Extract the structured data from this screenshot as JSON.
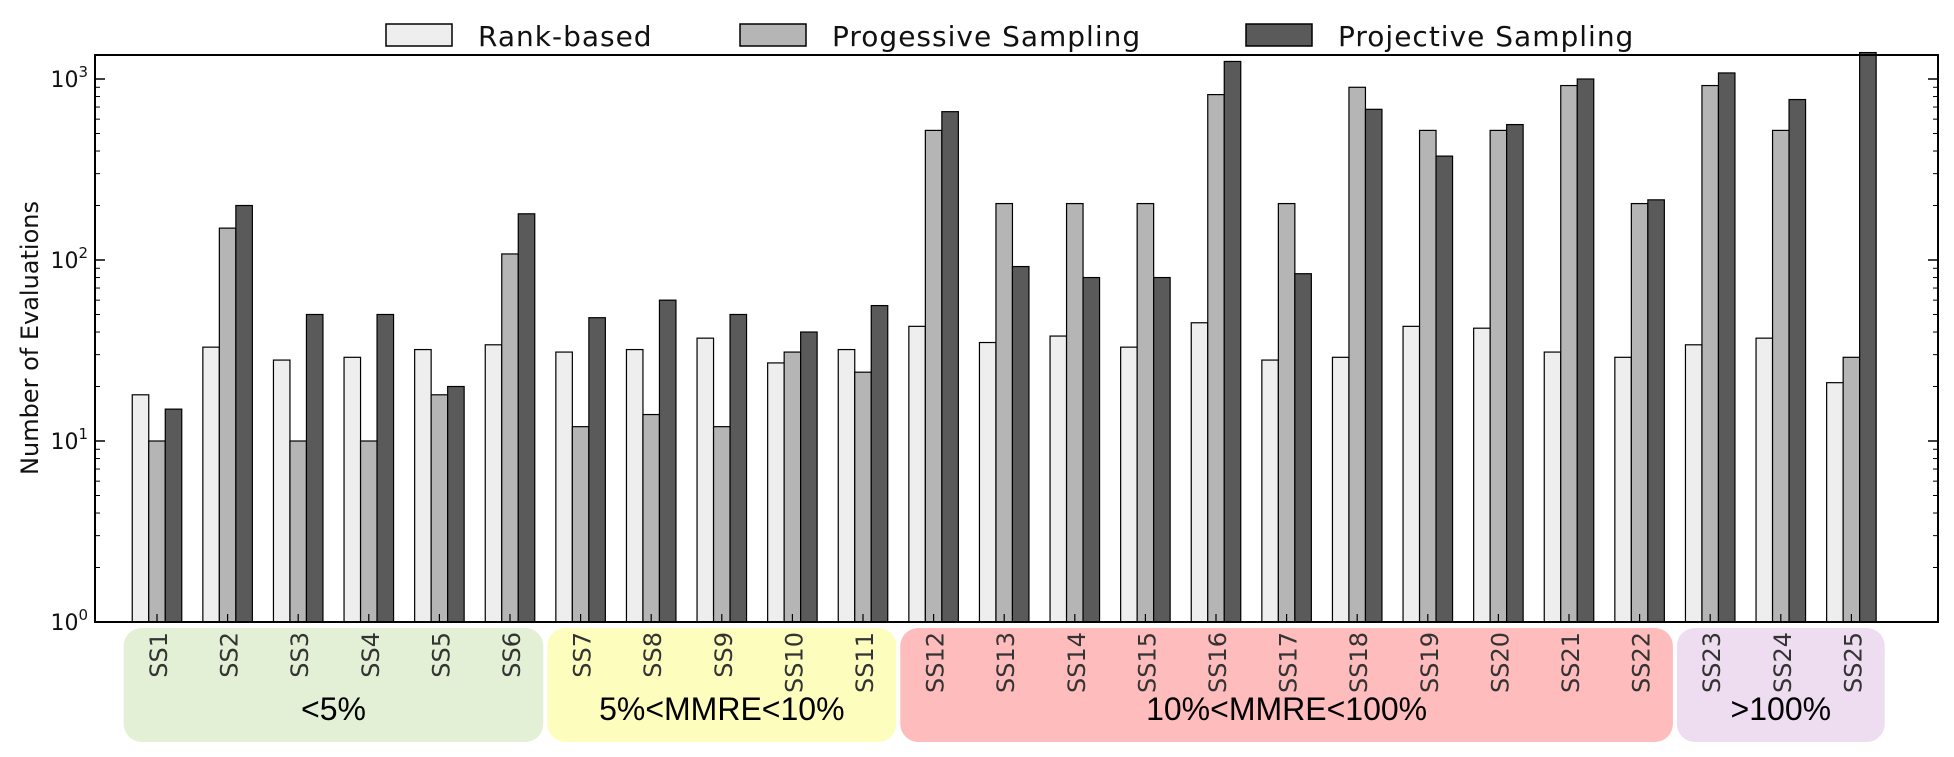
{
  "chart_data": {
    "type": "bar",
    "ylabel": "Number of Evaluations",
    "xlabel": "",
    "yscale": "log",
    "ylim": [
      1,
      1400
    ],
    "yticks": [
      {
        "base": "10",
        "exp": "0"
      },
      {
        "base": "10",
        "exp": "1"
      },
      {
        "base": "10",
        "exp": "2"
      },
      {
        "base": "10",
        "exp": "3"
      }
    ],
    "legend_position": "top",
    "categories": [
      "SS1",
      "SS2",
      "SS3",
      "SS4",
      "SS5",
      "SS6",
      "SS7",
      "SS8",
      "SS9",
      "SS10",
      "SS11",
      "SS12",
      "SS13",
      "SS14",
      "SS15",
      "SS16",
      "SS17",
      "SS18",
      "SS19",
      "SS20",
      "SS21",
      "SS22",
      "SS23",
      "SS24",
      "SS25"
    ],
    "series": [
      {
        "name": "Rank-based",
        "color": "#eeeeee",
        "values": [
          18,
          33,
          28,
          29,
          32,
          34,
          31,
          32,
          37,
          27,
          32,
          43,
          35,
          38,
          33,
          45,
          28,
          29,
          43,
          42,
          31,
          29,
          34,
          37,
          21
        ]
      },
      {
        "name": "Progessive Sampling",
        "color": "#b5b5b5",
        "values": [
          10,
          150,
          10,
          10,
          18,
          108,
          12,
          14,
          12,
          31,
          24,
          520,
          205,
          205,
          205,
          820,
          205,
          900,
          520,
          520,
          920,
          205,
          920,
          520,
          29
        ]
      },
      {
        "name": "Projective Sampling",
        "color": "#5a5a5a",
        "values": [
          15,
          200,
          50,
          50,
          20,
          180,
          48,
          60,
          50,
          40,
          56,
          660,
          92,
          80,
          80,
          1250,
          84,
          680,
          375,
          560,
          1000,
          215,
          1080,
          770,
          1400
        ]
      }
    ],
    "groups": [
      {
        "label": "<5%",
        "first": 0,
        "last": 5,
        "color": "#e3f0d5"
      },
      {
        "label": "5%<MMRE<10%",
        "first": 6,
        "last": 10,
        "color": "#fdfdbe"
      },
      {
        "label": "10%<MMRE<100%",
        "first": 11,
        "last": 21,
        "color": "#ffbcbc"
      },
      {
        "label": ">100%",
        "first": 22,
        "last": 24,
        "color": "#eedcf0"
      }
    ]
  }
}
